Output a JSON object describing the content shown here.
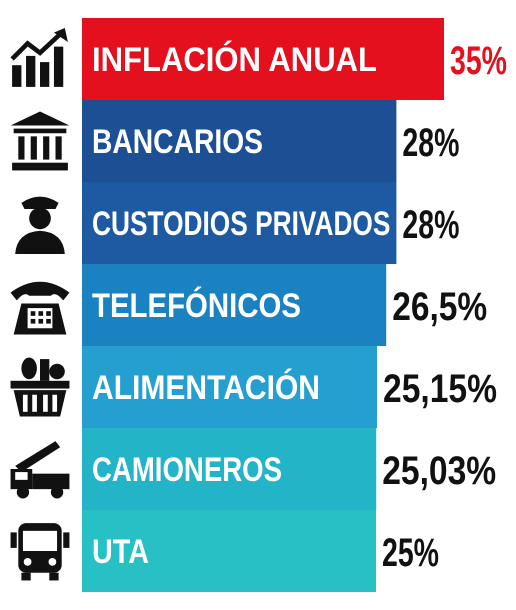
{
  "chart_data": {
    "type": "bar",
    "orientation": "horizontal",
    "categories": [
      "INFLACIÓN ANUAL",
      "BANCARIOS",
      "CUSTODIOS PRIVADOS",
      "TELEFÓNICOS",
      "ALIMENTACIÓN",
      "CAMIONEROS",
      "UTA"
    ],
    "values": [
      35,
      28,
      28,
      26.5,
      25.15,
      25.03,
      25
    ],
    "value_labels": [
      "35%",
      "28%",
      "28%",
      "26,5%",
      "25,15%",
      "25,03%",
      "25%"
    ],
    "icons": [
      "trend-chart-icon",
      "bank-icon",
      "guard-icon",
      "telephone-icon",
      "grocery-basket-icon",
      "truck-icon",
      "bus-icon"
    ],
    "bar_colors": [
      "#e4101e",
      "#1d4f94",
      "#1d5aa2",
      "#1a82c1",
      "#259fd0",
      "#24b4c8",
      "#27c0c5"
    ],
    "value_colors": [
      "#e4101e",
      "#111111",
      "#111111",
      "#111111",
      "#111111",
      "#111111",
      "#111111"
    ]
  }
}
